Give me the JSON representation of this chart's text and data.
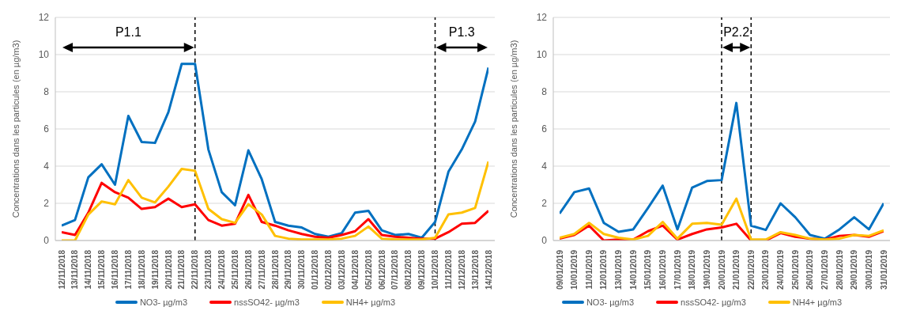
{
  "chart_data": [
    {
      "type": "line",
      "ylabel": "Concentrations dans les particules (en µg/m3)",
      "categories": [
        "12/11/2018",
        "13/11/2018",
        "14/11/2018",
        "15/11/2018",
        "16/11/2018",
        "17/11/2018",
        "18/11/2018",
        "19/11/2018",
        "20/11/2018",
        "21/11/2018",
        "22/11/2018",
        "23/11/2018",
        "24/11/2018",
        "25/11/2018",
        "26/11/2018",
        "27/11/2018",
        "28/11/2018",
        "29/11/2018",
        "30/11/2018",
        "01/12/2018",
        "02/12/2018",
        "03/12/2018",
        "04/12/2018",
        "05/12/2018",
        "06/12/2018",
        "07/12/2018",
        "08/12/2018",
        "09/12/2018",
        "10/12/2018",
        "11/12/2018",
        "12/12/2018",
        "13/12/2018",
        "14/12/2018"
      ],
      "series": [
        {
          "name": "NO3- µg/m3",
          "color": "#0070c0",
          "values": [
            0.8,
            1.1,
            3.4,
            4.1,
            3.0,
            6.7,
            5.3,
            5.25,
            6.9,
            9.5,
            9.5,
            4.9,
            2.6,
            1.9,
            4.85,
            3.3,
            1.0,
            0.8,
            0.7,
            0.35,
            0.2,
            0.4,
            1.5,
            1.6,
            0.55,
            0.3,
            0.35,
            0.15,
            1.0,
            3.7,
            4.9,
            6.4,
            9.3
          ]
        },
        {
          "name": "nssSO42- µg/m3",
          "color": "#ff0000",
          "values": [
            0.45,
            0.3,
            1.5,
            3.1,
            2.6,
            2.3,
            1.7,
            1.8,
            2.25,
            1.8,
            1.95,
            1.1,
            0.8,
            0.9,
            2.45,
            1.0,
            0.8,
            0.55,
            0.35,
            0.2,
            0.15,
            0.3,
            0.5,
            1.15,
            0.3,
            0.2,
            0.15,
            0.1,
            0.1,
            0.45,
            0.9,
            0.95,
            1.6
          ]
        },
        {
          "name": "NH4+ µg/m3",
          "color": "#ffc000",
          "values": [
            0.0,
            0.0,
            1.4,
            2.1,
            1.95,
            3.25,
            2.3,
            2.05,
            2.9,
            3.85,
            3.75,
            1.7,
            1.15,
            0.95,
            1.95,
            1.4,
            0.25,
            0.1,
            0.05,
            0.05,
            0.05,
            0.1,
            0.25,
            0.75,
            0.1,
            0.05,
            0.05,
            0.05,
            0.15,
            1.4,
            1.5,
            1.75,
            4.25
          ]
        }
      ],
      "ylim": [
        0,
        12
      ],
      "yticks": [
        0,
        2,
        4,
        6,
        8,
        10,
        12
      ],
      "grid": "y",
      "legend": "bottom",
      "marker": "none",
      "line_style": "solid",
      "ref_lines": [
        {
          "axis": "x",
          "value": "22/11/2018",
          "color": "#000000",
          "line_style": "dashed"
        },
        {
          "axis": "x",
          "value": "10/12/2018",
          "color": "#000000",
          "line_style": "dashed"
        }
      ],
      "annotations": [
        "P1.1",
        "P1.3"
      ]
    },
    {
      "type": "line",
      "ylabel": "Concentrations dans les particules (en µg/m3)",
      "categories": [
        "09/01/2019",
        "10/01/2019",
        "11/01/2019",
        "12/01/2019",
        "13/01/2019",
        "14/01/2019",
        "15/01/2019",
        "16/01/2019",
        "17/01/2019",
        "18/01/2019",
        "19/01/2019",
        "20/01/2019",
        "21/01/2019",
        "22/01/2019",
        "23/01/2019",
        "24/01/2019",
        "25/01/2019",
        "26/01/2019",
        "27/01/2019",
        "28/01/2019",
        "29/01/2019",
        "30/01/2019",
        "31/01/2019"
      ],
      "series": [
        {
          "name": "NO3- µg/m3",
          "color": "#0070c0",
          "values": [
            1.45,
            2.6,
            2.8,
            0.95,
            0.47,
            0.6,
            1.75,
            2.95,
            0.6,
            2.85,
            3.2,
            3.25,
            7.4,
            0.8,
            0.57,
            2.0,
            1.25,
            0.3,
            0.1,
            0.6,
            1.25,
            0.6,
            2.0
          ]
        },
        {
          "name": "nssSO42- µg/m3",
          "color": "#ff0000",
          "values": [
            0.1,
            0.3,
            0.8,
            0.0,
            0.05,
            0.05,
            0.5,
            0.8,
            0.05,
            0.35,
            0.6,
            0.7,
            0.9,
            0.0,
            0.0,
            0.4,
            0.2,
            0.1,
            0.05,
            0.25,
            0.3,
            0.2,
            0.5
          ]
        },
        {
          "name": "NH4+ µg/m3",
          "color": "#ffc000",
          "values": [
            0.15,
            0.35,
            0.95,
            0.35,
            0.15,
            0.05,
            0.25,
            1.0,
            0.1,
            0.9,
            0.95,
            0.85,
            2.25,
            0.05,
            0.05,
            0.45,
            0.3,
            0.1,
            0.05,
            0.1,
            0.3,
            0.25,
            0.55
          ]
        }
      ],
      "ylim": [
        0,
        12
      ],
      "yticks": [
        0,
        2,
        4,
        6,
        8,
        10,
        12
      ],
      "grid": "y",
      "legend": "bottom",
      "marker": "none",
      "line_style": "solid",
      "ref_lines": [
        {
          "axis": "x",
          "value": "20/01/2019",
          "color": "#000000",
          "line_style": "dashed"
        },
        {
          "axis": "x",
          "value": "22/01/2019",
          "color": "#000000",
          "line_style": "dashed"
        }
      ],
      "annotations": [
        "P2.2"
      ]
    }
  ]
}
